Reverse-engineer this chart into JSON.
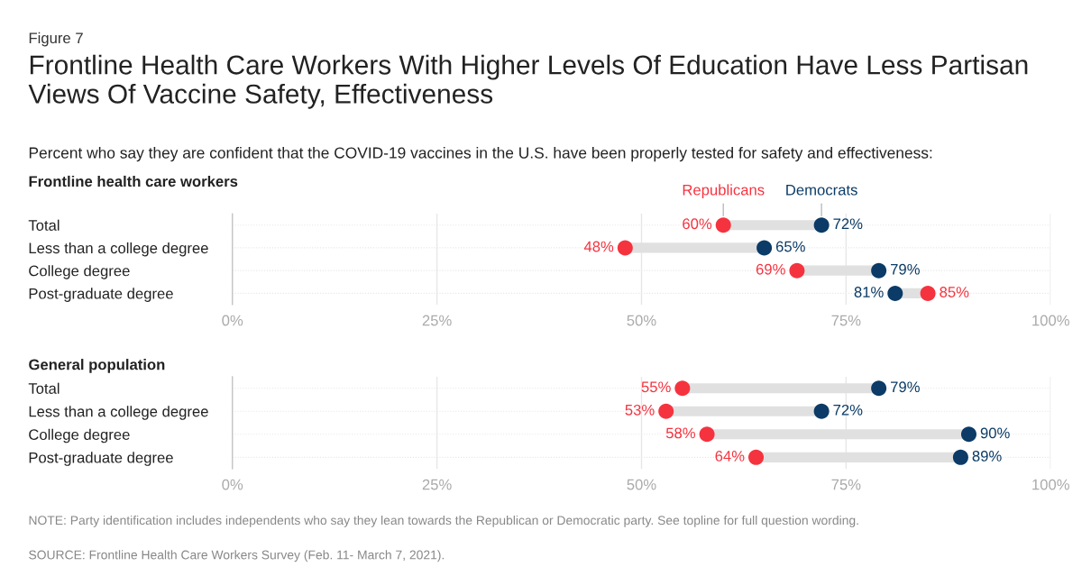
{
  "chart_data": [
    {
      "type": "scatter",
      "orientation": "horizontal",
      "title": "Frontline Health Care Workers With Higher Levels Of Education Have Less Partisan Views Of Vaccine Safety, Effectiveness",
      "subtitle": "Percent who say they are confident that the COVID-19 vaccines in the U.S. have been properly tested for safety and effectiveness:",
      "annotations": [
        "Figure 7",
        "Frontline health care workers"
      ],
      "categories": [
        "Total",
        "Less than a college degree",
        "College degree",
        "Post-graduate degree"
      ],
      "series": [
        {
          "name": "Republicans",
          "color": "#f5333f",
          "values": [
            60,
            48,
            69,
            85
          ],
          "value_labels": [
            "60%",
            "48%",
            "69%",
            "85%"
          ]
        },
        {
          "name": "Democrats",
          "color": "#0b3b66",
          "values": [
            72,
            65,
            79,
            81
          ],
          "value_labels": [
            "72%",
            "65%",
            "79%",
            "81%"
          ]
        }
      ],
      "xlim": [
        0,
        100
      ],
      "xticks": [
        {
          "value": 0,
          "label": "0%"
        },
        {
          "value": 25,
          "label": "25%"
        },
        {
          "value": 50,
          "label": "50%"
        },
        {
          "value": 75,
          "label": "75%"
        },
        {
          "value": 100,
          "label": "100%"
        }
      ],
      "grid": true,
      "legend": false,
      "marker": "circle"
    },
    {
      "type": "scatter",
      "orientation": "horizontal",
      "annotations": [
        "General population",
        "NOTE: Party identification includes independents who say they lean towards the Republican or Democratic party. See topline for full question wording.",
        "SOURCE: Frontline Health Care Workers Survey (Feb. 11- March 7, 2021)."
      ],
      "categories": [
        "Total",
        "Less than a college degree",
        "College degree",
        "Post-graduate degree"
      ],
      "series": [
        {
          "color": "#f5333f",
          "values": [
            55,
            53,
            58,
            64
          ],
          "value_labels": [
            "55%",
            "53%",
            "58%",
            "64%"
          ]
        },
        {
          "color": "#0b3b66",
          "values": [
            79,
            72,
            90,
            89
          ],
          "value_labels": [
            "79%",
            "72%",
            "90%",
            "89%"
          ]
        }
      ],
      "xlim": [
        0,
        100
      ],
      "xticks": [
        {
          "value": 0,
          "label": "0%"
        },
        {
          "value": 25,
          "label": "25%"
        },
        {
          "value": 50,
          "label": "50%"
        },
        {
          "value": 75,
          "label": "75%"
        },
        {
          "value": 100,
          "label": "100%"
        }
      ],
      "grid": true,
      "legend": false,
      "marker": "circle"
    }
  ]
}
